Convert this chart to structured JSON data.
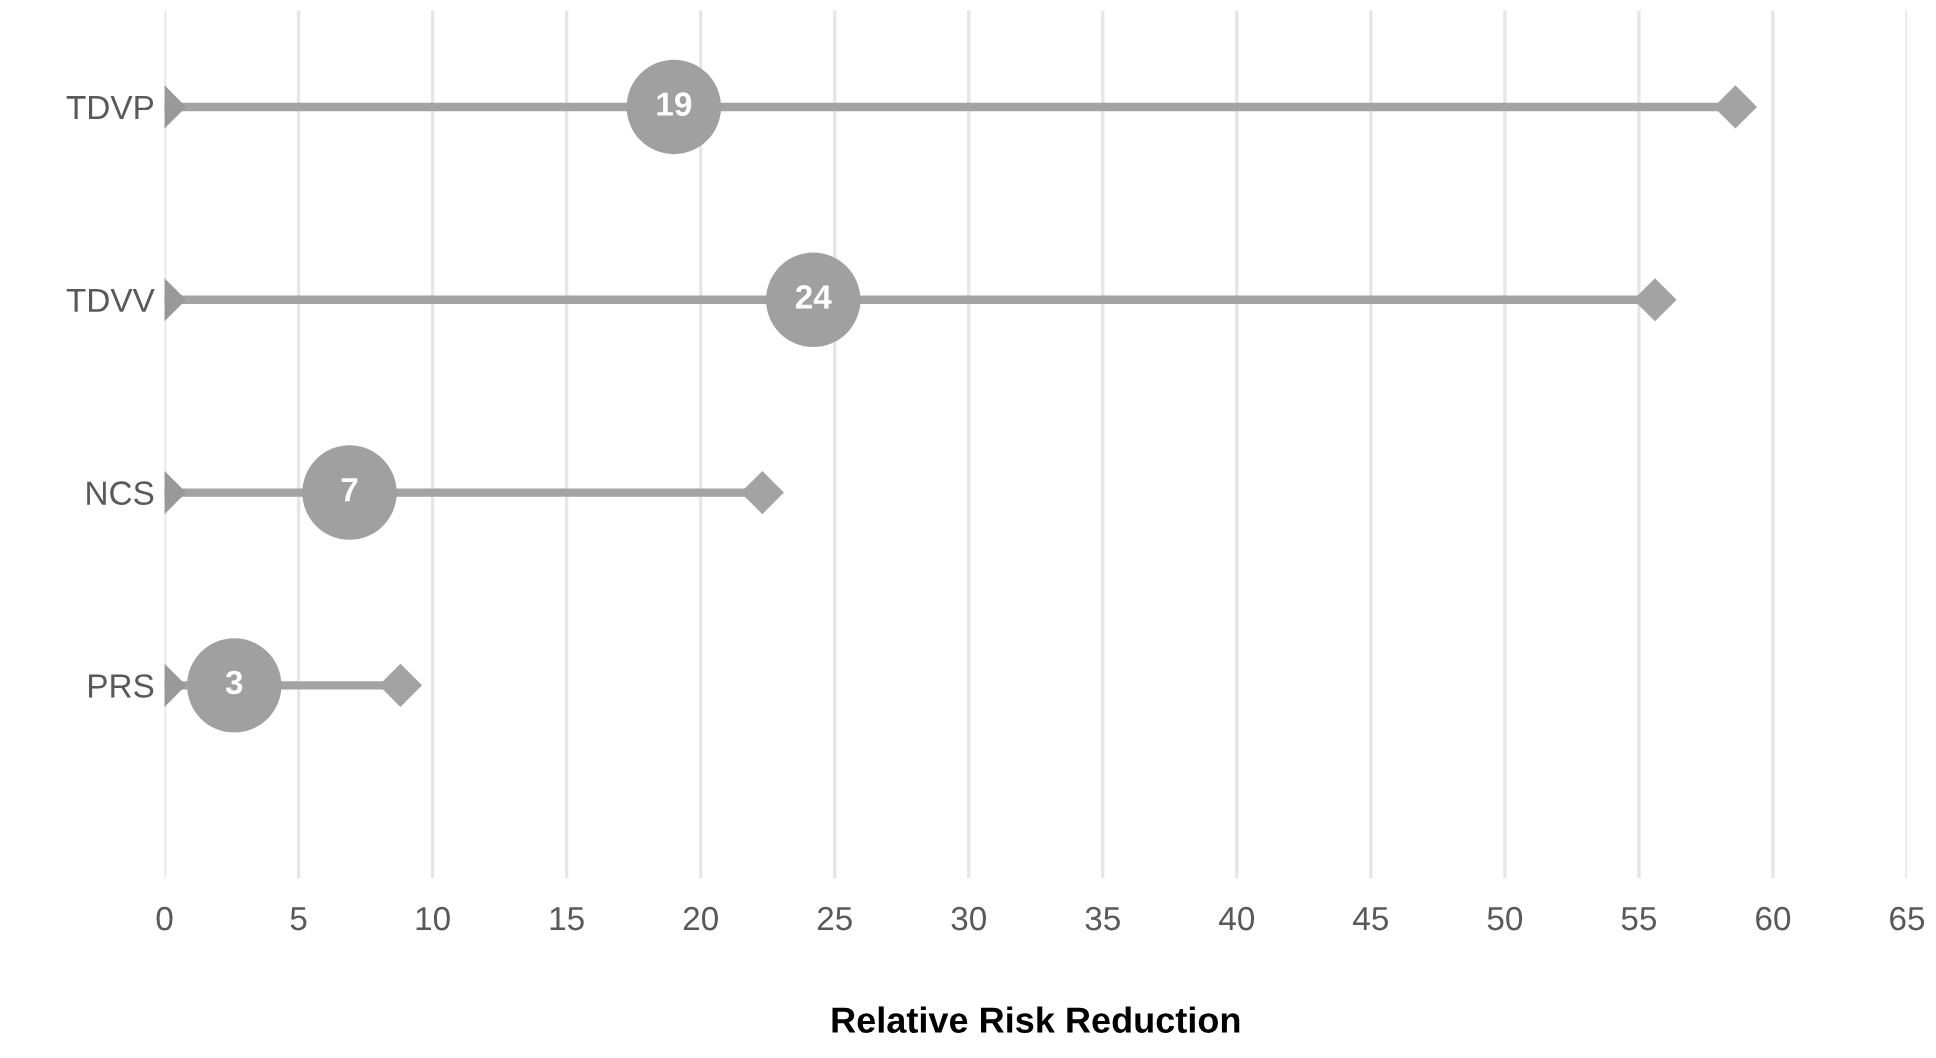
{
  "chart_data": {
    "type": "lollipop",
    "orientation": "horizontal",
    "xlabel": "Relative Risk Reduction",
    "categories": [
      "TDVP",
      "TDVV",
      "NCS",
      "PRS"
    ],
    "xlim": [
      0,
      65
    ],
    "xticks": [
      0,
      5,
      10,
      15,
      20,
      25,
      30,
      35,
      40,
      45,
      50,
      55,
      60,
      65
    ],
    "grid": "x",
    "series": [
      {
        "marker": "diamond",
        "values": [
          58.6,
          55.6,
          22.3,
          8.8
        ],
        "color": "#a3a3a3"
      },
      {
        "type": "scatter",
        "marker": "diamond",
        "values": [
          0,
          0,
          0,
          0
        ],
        "color": "#999999"
      },
      {
        "type": "scatter",
        "marker": "circle",
        "values": [
          19,
          24.2,
          6.9,
          2.6
        ],
        "value_labels": [
          "19",
          "24",
          "7",
          "3"
        ],
        "color": "#a0a0a0"
      }
    ]
  }
}
